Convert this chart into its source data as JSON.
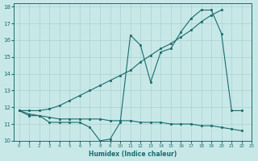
{
  "xlabel": "Humidex (Indice chaleur)",
  "xlim": [
    -0.5,
    23
  ],
  "ylim": [
    10,
    18.2
  ],
  "yticks": [
    10,
    11,
    12,
    13,
    14,
    15,
    16,
    17,
    18
  ],
  "xticks": [
    0,
    1,
    2,
    3,
    4,
    5,
    6,
    7,
    8,
    9,
    10,
    11,
    12,
    13,
    14,
    15,
    16,
    17,
    18,
    19,
    20,
    21,
    22,
    23
  ],
  "bg_color": "#c8e8e8",
  "line_color": "#1a6b6b",
  "grid_color": "#aad0d0",
  "line1_x": [
    0,
    1,
    2,
    3,
    4,
    5,
    6,
    7,
    8,
    9,
    10,
    11,
    12,
    13,
    14,
    15,
    16,
    17,
    18,
    19,
    20,
    21,
    22
  ],
  "line1_y": [
    11.8,
    11.6,
    11.5,
    11.1,
    11.1,
    11.1,
    11.1,
    10.8,
    10.0,
    10.1,
    11.1,
    16.3,
    15.7,
    13.5,
    15.3,
    15.5,
    16.5,
    17.3,
    17.8,
    17.8,
    16.4,
    11.8,
    11.8
  ],
  "line2_x": [
    0,
    1,
    2,
    3,
    4,
    5,
    6,
    7,
    8,
    9,
    10,
    11,
    12,
    13,
    14,
    15,
    16,
    17,
    18,
    19,
    20,
    21,
    22
  ],
  "line2_y": [
    11.8,
    11.5,
    11.5,
    11.4,
    11.3,
    11.3,
    11.3,
    11.3,
    11.3,
    11.2,
    11.2,
    11.2,
    11.1,
    11.1,
    11.1,
    11.0,
    11.0,
    11.0,
    10.9,
    10.9,
    10.8,
    10.7,
    10.6
  ],
  "line3_x": [
    0,
    1,
    2,
    3,
    4,
    5,
    6,
    7,
    8,
    9,
    10,
    11,
    12,
    13,
    14,
    15,
    16,
    17,
    18,
    19,
    20
  ],
  "line3_y": [
    11.8,
    11.8,
    11.8,
    11.9,
    12.1,
    12.4,
    12.7,
    13.0,
    13.3,
    13.6,
    13.9,
    14.2,
    14.7,
    15.1,
    15.5,
    15.8,
    16.2,
    16.6,
    17.1,
    17.5,
    17.8
  ]
}
